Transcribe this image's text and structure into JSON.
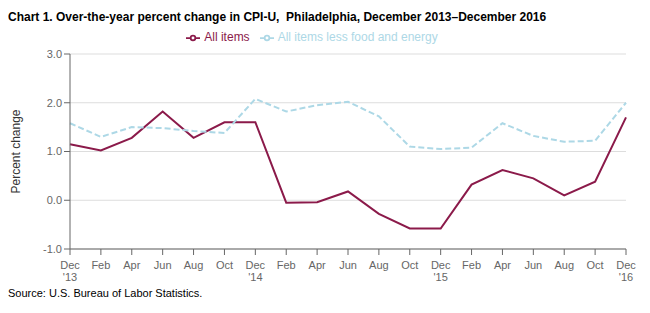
{
  "chart_data": {
    "type": "line",
    "title": "Chart 1. Over-the-year percent change in CPI-U,  Philadelphia, December 2013–December 2016",
    "y_label": "Percent change",
    "source": "Source: U.S. Bureau of Labor Statistics.",
    "categories": [
      "Dec\n'13",
      "Feb",
      "Apr",
      "Jun",
      "Aug",
      "Oct",
      "Dec\n'14",
      "Feb",
      "Apr",
      "Jun",
      "Aug",
      "Oct",
      "Dec\n'15",
      "Feb",
      "Apr",
      "Jun",
      "Aug",
      "Oct",
      "Dec\n'16"
    ],
    "series": [
      {
        "name": "All items",
        "color": "#8B1A4A",
        "line_style": "solid",
        "values": [
          1.15,
          1.02,
          1.28,
          1.82,
          1.28,
          1.6,
          1.6,
          -0.05,
          -0.04,
          0.18,
          -0.28,
          -0.58,
          -0.58,
          0.32,
          0.62,
          0.45,
          0.1,
          0.38,
          1.7
        ]
      },
      {
        "name": "All items less food and energy",
        "color": "#ADD8E6",
        "line_style": "dashed",
        "values": [
          1.58,
          1.3,
          1.5,
          1.48,
          1.42,
          1.38,
          2.08,
          1.82,
          1.95,
          2.02,
          1.72,
          1.1,
          1.05,
          1.08,
          1.58,
          1.32,
          1.2,
          1.22,
          2.0
        ]
      }
    ],
    "ylim": [
      -1.0,
      3.0
    ],
    "yticks": [
      {
        "value": -1.0,
        "label": "-1.0"
      },
      {
        "value": 0.0,
        "label": "0.0"
      },
      {
        "value": 1.0,
        "label": "1.0"
      },
      {
        "value": 2.0,
        "label": "2.0"
      },
      {
        "value": 3.0,
        "label": "3.0"
      }
    ],
    "grid": true,
    "legend": "top"
  }
}
